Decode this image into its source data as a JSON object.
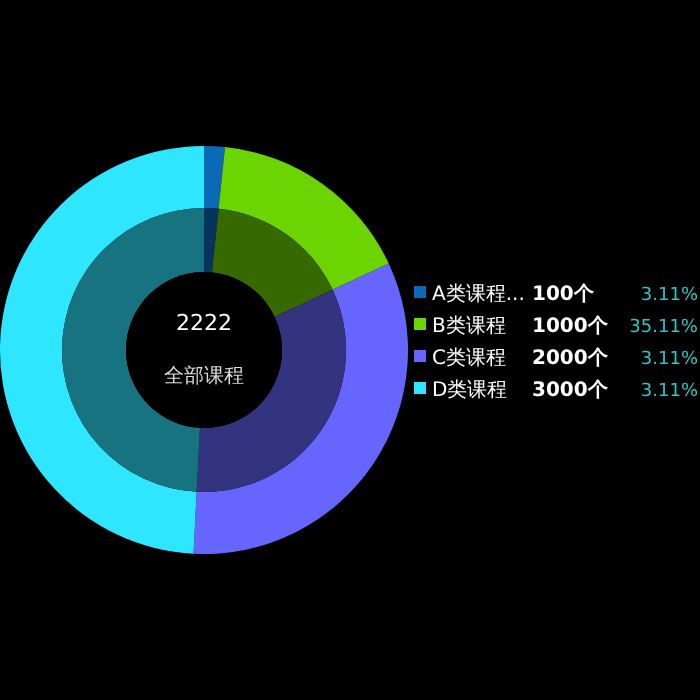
{
  "chart_data": {
    "type": "donut",
    "title": "2222",
    "subtitle": "全部课程",
    "categories": [
      "A类课程...",
      "B类课程",
      "C类课程",
      "D类课程"
    ],
    "series": [
      {
        "values": [
          100,
          1000,
          2000,
          3000
        ],
        "colors": [
          "#0a6ab8",
          "#6cd400",
          "#6666ff",
          "#2ee6ff"
        ],
        "value_labels": [
          "100个",
          "1000个",
          "2000个",
          "3000个"
        ]
      },
      {
        "values": [
          1.64,
          16.39,
          32.79,
          49.18
        ],
        "colors": [
          "#05355c",
          "#366a00",
          "#333380",
          "#177380"
        ]
      }
    ],
    "annotations": [
      "3.11%",
      "35.11%",
      "3.11%",
      "3.11%"
    ],
    "legend": "right"
  }
}
